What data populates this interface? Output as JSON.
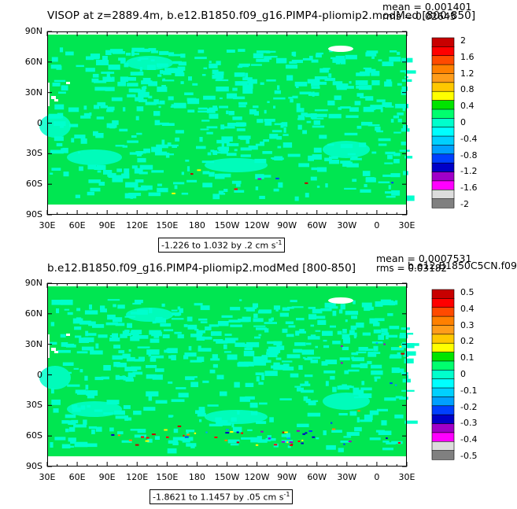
{
  "panels": [
    {
      "title": "VISOP at z=2889.4m, b.e12.B1850.f09_g16.PIMP4-pliomip2.modMed [800-850]",
      "stats": {
        "mean": "mean = 0.001401",
        "rms": "rms = 0.02645"
      },
      "range_label": "-1.226 to 1.032 by .2 cm s",
      "range_unit_exp": "-1",
      "y_ticks": [
        "90N",
        "60N",
        "30N",
        "0",
        "30S",
        "60S",
        "90S"
      ],
      "x_ticks": [
        "30E",
        "60E",
        "90E",
        "120E",
        "150E",
        "180",
        "150W",
        "120W",
        "90W",
        "60W",
        "30W",
        "0",
        "30E"
      ],
      "colorbar": {
        "labels": [
          "2",
          "1.6",
          "1.2",
          "0.8",
          "0.4",
          "0",
          "-0.4",
          "-0.8",
          "-1.2",
          "-1.6",
          "-2"
        ],
        "colors": [
          "#c80000",
          "#ff0000",
          "#ff4a00",
          "#ff8000",
          "#ff9c1a",
          "#ffc800",
          "#ffff00",
          "#00e400",
          "#00ff6e",
          "#00ffcc",
          "#00ffff",
          "#00d0ff",
          "#00a0ff",
          "#0040ff",
          "#0000c8",
          "#a000c8",
          "#ff00ff",
          "#dcdcdc",
          "#808080"
        ]
      }
    },
    {
      "title": "b.e12.B1850.f09_g16.PIMP4-pliomip2.modMed [800-850]",
      "subtitle": "b.e12.B1850C5CN.f09",
      "stats": {
        "mean": "mean = 0.0007531",
        "rms": "rms = 0.03182"
      },
      "range_label": "-1.8621 to 1.1457 by .05 cm s",
      "range_unit_exp": "-1",
      "y_ticks": [
        "90N",
        "60N",
        "30N",
        "0",
        "30S",
        "60S",
        "90S"
      ],
      "x_ticks": [
        "30E",
        "60E",
        "90E",
        "120E",
        "150E",
        "180",
        "150W",
        "120W",
        "90W",
        "60W",
        "30W",
        "0",
        "30E"
      ],
      "colorbar": {
        "labels": [
          "0.5",
          "0.4",
          "0.3",
          "0.2",
          "0.1",
          "0",
          "-0.1",
          "-0.2",
          "-0.3",
          "-0.4",
          "-0.5"
        ],
        "colors": [
          "#c80000",
          "#ff0000",
          "#ff4a00",
          "#ff8000",
          "#ff9c1a",
          "#ffc800",
          "#ffff00",
          "#00e400",
          "#00ff6e",
          "#00ffcc",
          "#00ffff",
          "#00d0ff",
          "#00a0ff",
          "#0040ff",
          "#0000c8",
          "#a000c8",
          "#ff00ff",
          "#dcdcdc",
          "#808080"
        ]
      }
    }
  ],
  "colors": {
    "field_green": "#00e651",
    "field_cyan": "#00ffcc",
    "land_white": "#ffffff"
  }
}
